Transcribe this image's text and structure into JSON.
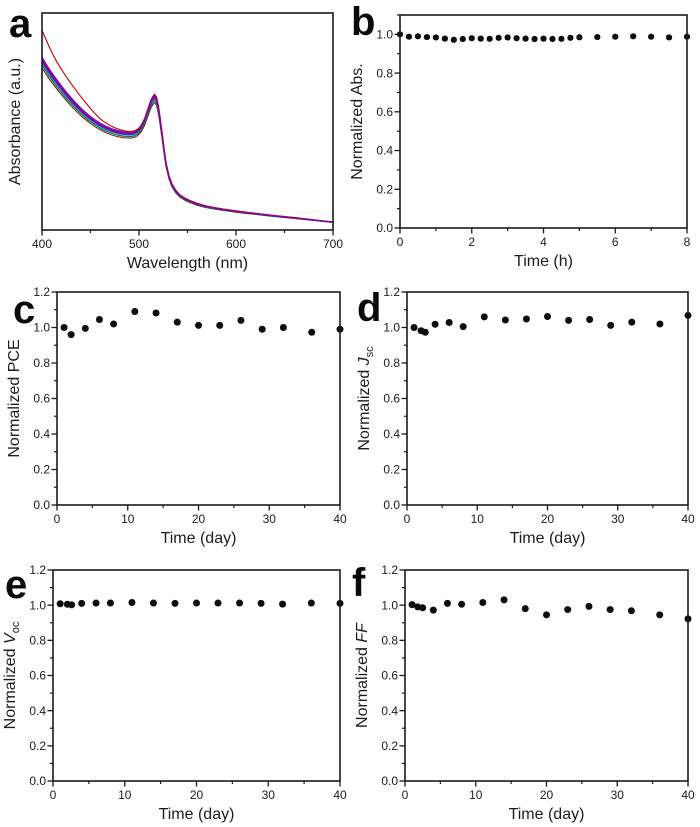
{
  "figure": {
    "background": "#ffffff",
    "frame_color": "#1a1a1a",
    "marker_color": "#0d0d0d"
  },
  "chart_data": [
    {
      "panel": "a",
      "type": "line",
      "xlabel": "Wavelength (nm)",
      "ylabel_segments": [
        {
          "t": "Absorbance (a.u.)"
        }
      ],
      "xlim": [
        400,
        700
      ],
      "ylim": [
        0,
        1
      ],
      "xticks": [
        400,
        500,
        600,
        700
      ],
      "x_minor": 50,
      "yticks": [],
      "y_minor": null,
      "x_decimals": 0,
      "base_points": [
        [
          400,
          0.78
        ],
        [
          406,
          0.737
        ],
        [
          412,
          0.698
        ],
        [
          418,
          0.662
        ],
        [
          424,
          0.628
        ],
        [
          430,
          0.597
        ],
        [
          436,
          0.568
        ],
        [
          442,
          0.542
        ],
        [
          448,
          0.519
        ],
        [
          454,
          0.499
        ],
        [
          460,
          0.482
        ],
        [
          466,
          0.468
        ],
        [
          472,
          0.457
        ],
        [
          478,
          0.449
        ],
        [
          484,
          0.444
        ],
        [
          490,
          0.442
        ],
        [
          494,
          0.444
        ],
        [
          498,
          0.452
        ],
        [
          502,
          0.47
        ],
        [
          506,
          0.505
        ],
        [
          509,
          0.545
        ],
        [
          512,
          0.583
        ],
        [
          514,
          0.602
        ],
        [
          516,
          0.612
        ],
        [
          518,
          0.6
        ],
        [
          520,
          0.56
        ],
        [
          522,
          0.5
        ],
        [
          524,
          0.432
        ],
        [
          526,
          0.362
        ],
        [
          528,
          0.3
        ],
        [
          531,
          0.243
        ],
        [
          534,
          0.207
        ],
        [
          538,
          0.178
        ],
        [
          542,
          0.159
        ],
        [
          547,
          0.144
        ],
        [
          553,
          0.131
        ],
        [
          560,
          0.119
        ],
        [
          568,
          0.109
        ],
        [
          577,
          0.101
        ],
        [
          587,
          0.094
        ],
        [
          598,
          0.087
        ],
        [
          610,
          0.08
        ],
        [
          622,
          0.074
        ],
        [
          635,
          0.067
        ],
        [
          648,
          0.061
        ],
        [
          661,
          0.055
        ],
        [
          674,
          0.049
        ],
        [
          686,
          0.043
        ],
        [
          700,
          0.036
        ]
      ],
      "series": [
        {
          "color": "#8b2500",
          "scale": 0.958
        },
        {
          "color": "#006e6e",
          "scale": 0.974
        },
        {
          "color": "#009e9e",
          "scale": 0.988
        },
        {
          "color": "#000090",
          "scale": 1.0
        },
        {
          "color": "#2323d6",
          "scale": 1.012
        },
        {
          "color": "#a000a0",
          "scale": 1.022
        },
        {
          "color": "#7a00b4",
          "scale": 0.998
        },
        {
          "color": "#c40000",
          "points": [
            [
              400,
              0.92
            ],
            [
              405,
              0.868
            ],
            [
              410,
              0.82
            ],
            [
              415,
              0.778
            ],
            [
              420,
              0.74
            ],
            [
              426,
              0.7
            ],
            [
              432,
              0.662
            ],
            [
              438,
              0.626
            ],
            [
              444,
              0.592
            ],
            [
              450,
              0.56
            ],
            [
              456,
              0.53
            ],
            [
              462,
              0.505
            ],
            [
              468,
              0.487
            ],
            [
              474,
              0.473
            ],
            [
              480,
              0.463
            ],
            [
              486,
              0.456
            ],
            [
              492,
              0.454
            ],
            [
              496,
              0.458
            ],
            [
              500,
              0.468
            ],
            [
              504,
              0.492
            ],
            [
              508,
              0.535
            ],
            [
              511,
              0.572
            ],
            [
              514,
              0.605
            ],
            [
              516,
              0.622
            ],
            [
              518,
              0.612
            ],
            [
              520,
              0.572
            ],
            [
              522,
              0.512
            ],
            [
              524,
              0.443
            ],
            [
              526,
              0.372
            ],
            [
              528,
              0.308
            ],
            [
              531,
              0.25
            ],
            [
              534,
              0.213
            ],
            [
              538,
              0.183
            ],
            [
              542,
              0.163
            ],
            [
              547,
              0.148
            ],
            [
              553,
              0.135
            ],
            [
              560,
              0.123
            ],
            [
              568,
              0.112
            ],
            [
              577,
              0.104
            ],
            [
              587,
              0.097
            ],
            [
              598,
              0.09
            ],
            [
              610,
              0.083
            ],
            [
              622,
              0.076
            ],
            [
              635,
              0.069
            ],
            [
              648,
              0.063
            ],
            [
              661,
              0.057
            ],
            [
              674,
              0.05
            ],
            [
              686,
              0.044
            ],
            [
              700,
              0.037
            ]
          ]
        },
        {
          "color": "#8a00a8",
          "scale": 1.006
        }
      ]
    },
    {
      "panel": "b",
      "type": "scatter",
      "xlabel": "Time (h)",
      "ylabel_segments": [
        {
          "t": "Normalized Abs."
        }
      ],
      "xlim": [
        0,
        8
      ],
      "ylim": [
        0,
        1.1
      ],
      "xticks": [
        0,
        2,
        4,
        6,
        8
      ],
      "x_minor": 1,
      "yticks": [
        0,
        0.2,
        0.4,
        0.6,
        0.8,
        1.0
      ],
      "y_minor": 0.1,
      "x_decimals": 0,
      "marker_r": 3.1,
      "err": 0.008,
      "x": [
        0,
        0.25,
        0.5,
        0.75,
        1,
        1.25,
        1.5,
        1.75,
        2,
        2.25,
        2.5,
        2.75,
        3,
        3.25,
        3.5,
        3.75,
        4,
        4.25,
        4.5,
        4.75,
        5,
        5.5,
        6,
        6.5,
        7,
        7.5,
        8
      ],
      "y": [
        1.0,
        0.988,
        0.99,
        0.986,
        0.984,
        0.978,
        0.972,
        0.976,
        0.98,
        0.978,
        0.977,
        0.982,
        0.984,
        0.98,
        0.978,
        0.976,
        0.978,
        0.976,
        0.977,
        0.982,
        0.985,
        0.986,
        0.988,
        0.99,
        0.988,
        0.984,
        0.988
      ]
    },
    {
      "panel": "c",
      "type": "scatter",
      "xlabel": "Time (day)",
      "ylabel_segments": [
        {
          "t": "Normalized PCE"
        }
      ],
      "xlim": [
        0,
        40
      ],
      "ylim": [
        0,
        1.2
      ],
      "xticks": [
        0,
        10,
        20,
        30,
        40
      ],
      "x_minor": 5,
      "yticks": [
        0,
        0.2,
        0.4,
        0.6,
        0.8,
        1.0,
        1.2
      ],
      "y_minor": 0.1,
      "x_decimals": 0,
      "marker_r": 3.5,
      "err": 0.012,
      "x": [
        1,
        2,
        4,
        6,
        8,
        11,
        14,
        17,
        20,
        23,
        26,
        29,
        32,
        36,
        40
      ],
      "y": [
        1.0,
        0.96,
        0.995,
        1.045,
        1.02,
        1.09,
        1.082,
        1.03,
        1.012,
        1.012,
        1.04,
        0.99,
        1.0,
        0.973,
        0.99
      ]
    },
    {
      "panel": "d",
      "type": "scatter",
      "xlabel": "Time (day)",
      "ylabel_segments": [
        {
          "t": "Normalized "
        },
        {
          "t": "J",
          "i": true
        },
        {
          "t": "sc",
          "sub": true
        }
      ],
      "xlim": [
        0,
        40
      ],
      "ylim": [
        0,
        1.2
      ],
      "xticks": [
        0,
        10,
        20,
        30,
        40
      ],
      "x_minor": 5,
      "yticks": [
        0,
        0.2,
        0.4,
        0.6,
        0.8,
        1.0,
        1.2
      ],
      "y_minor": 0.1,
      "x_decimals": 0,
      "marker_r": 3.5,
      "err": 0.012,
      "x": [
        1,
        2,
        2.6,
        4,
        6,
        8,
        11,
        14,
        17,
        20,
        23,
        26,
        29,
        32,
        36,
        40
      ],
      "y": [
        1.0,
        0.982,
        0.973,
        1.018,
        1.028,
        1.005,
        1.06,
        1.042,
        1.048,
        1.062,
        1.04,
        1.045,
        1.012,
        1.03,
        1.02,
        1.068
      ]
    },
    {
      "panel": "e",
      "type": "scatter",
      "xlabel": "Time (day)",
      "ylabel_segments": [
        {
          "t": "Normalized "
        },
        {
          "t": "V",
          "i": true
        },
        {
          "t": "oc",
          "sub": true
        }
      ],
      "xlim": [
        0,
        40
      ],
      "ylim": [
        0,
        1.2
      ],
      "xticks": [
        0,
        10,
        20,
        30,
        40
      ],
      "x_minor": 5,
      "yticks": [
        0,
        0.2,
        0.4,
        0.6,
        0.8,
        1.0,
        1.2
      ],
      "y_minor": 0.1,
      "x_decimals": 0,
      "marker_r": 3.5,
      "err": 0.012,
      "x": [
        1,
        2,
        2.6,
        4,
        6,
        8,
        11,
        14,
        17,
        20,
        23,
        26,
        29,
        32,
        36,
        40
      ],
      "y": [
        1.008,
        1.005,
        1.002,
        1.01,
        1.012,
        1.012,
        1.015,
        1.012,
        1.01,
        1.012,
        1.012,
        1.012,
        1.01,
        1.006,
        1.012,
        1.01
      ]
    },
    {
      "panel": "f",
      "type": "scatter",
      "xlabel": "Time (day)",
      "ylabel_segments": [
        {
          "t": "Normalized "
        },
        {
          "t": "FF",
          "i": true
        }
      ],
      "xlim": [
        0,
        40
      ],
      "ylim": [
        0,
        1.2
      ],
      "xticks": [
        0,
        10,
        20,
        30,
        40
      ],
      "x_minor": 5,
      "yticks": [
        0,
        0.2,
        0.4,
        0.6,
        0.8,
        1.0,
        1.2
      ],
      "y_minor": 0.1,
      "x_decimals": 0,
      "marker_r": 3.5,
      "err": 0.012,
      "x": [
        1,
        1.8,
        2.5,
        4,
        6,
        8,
        11,
        14,
        17,
        20,
        23,
        26,
        29,
        32,
        36,
        40
      ],
      "y": [
        1.003,
        0.99,
        0.985,
        0.972,
        1.01,
        1.005,
        1.015,
        1.03,
        0.98,
        0.945,
        0.975,
        0.993,
        0.975,
        0.968,
        0.945,
        0.922
      ]
    }
  ]
}
